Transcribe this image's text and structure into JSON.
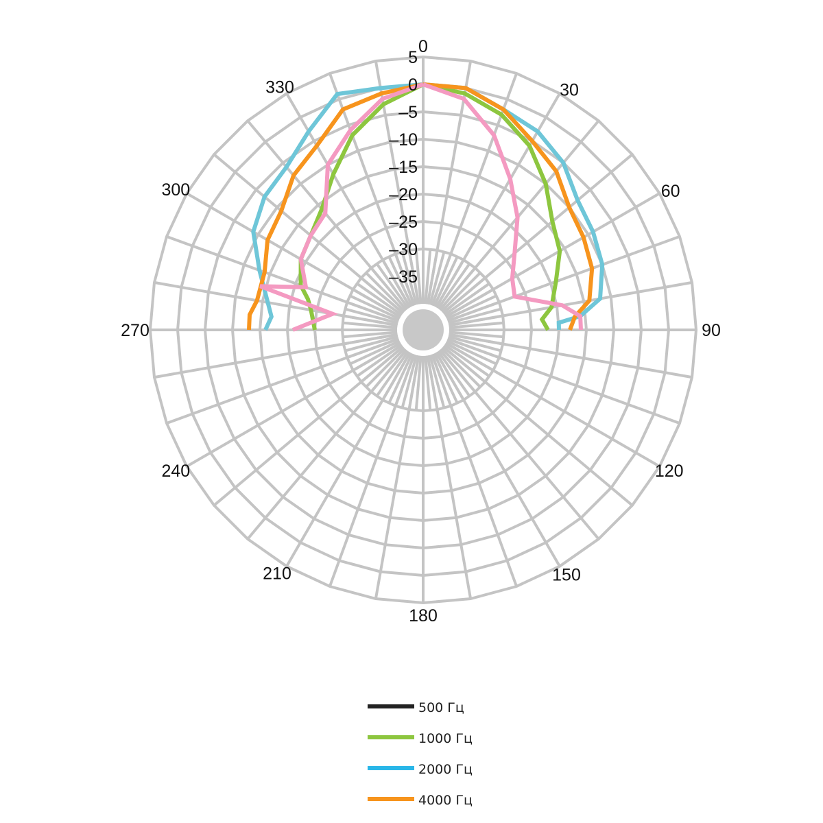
{
  "chart_data": {
    "type": "polar-line",
    "title": "",
    "angle_unit": "deg",
    "angle_direction": "clockwise",
    "angle_zero": "top",
    "angle_labels": [
      "0",
      "30",
      "60",
      "90",
      "120",
      "150",
      "180",
      "210",
      "240",
      "270",
      "300",
      "330"
    ],
    "radial_ticks": [
      5,
      0,
      -5,
      -10,
      -15,
      -20,
      -25,
      -30,
      -35
    ],
    "radial_tick_labels": [
      "5",
      "0",
      "-5",
      "-10",
      "-15",
      "-20",
      "-25",
      "-30",
      "-35"
    ],
    "rlim": [
      -40,
      5
    ],
    "radial_tick_angle": 0,
    "angular_gridline_step": 10,
    "grid": true,
    "legend_position": "bottom",
    "series": [
      {
        "name": "500 Гц",
        "color": "#222222",
        "points": []
      },
      {
        "name": "1000 Гц",
        "color": "#8dc63f",
        "points": [
          [
            0,
            0
          ],
          [
            10,
            -1
          ],
          [
            20,
            -3
          ],
          [
            30,
            -6
          ],
          [
            40,
            -10
          ],
          [
            50,
            -14
          ],
          [
            60,
            -16
          ],
          [
            70,
            -19
          ],
          [
            80,
            -21
          ],
          [
            85,
            -23
          ],
          [
            90,
            -22
          ],
          [
            270,
            -25
          ],
          [
            280,
            -24
          ],
          [
            285,
            -23
          ],
          [
            290,
            -21
          ],
          [
            300,
            -19
          ],
          [
            310,
            -18
          ],
          [
            320,
            -16
          ],
          [
            330,
            -12
          ],
          [
            340,
            -7
          ],
          [
            350,
            -3
          ],
          [
            360,
            0
          ]
        ]
      },
      {
        "name": "2000 Гц",
        "color": "#6ec6d8",
        "points": [
          [
            0,
            0
          ],
          [
            10,
            0
          ],
          [
            20,
            -2
          ],
          [
            30,
            -3
          ],
          [
            40,
            -5
          ],
          [
            50,
            -8
          ],
          [
            60,
            -9
          ],
          [
            70,
            -10
          ],
          [
            80,
            -12
          ],
          [
            85,
            -16
          ],
          [
            87,
            -20
          ],
          [
            90,
            -20
          ],
          [
            270,
            -16
          ],
          [
            275,
            -17
          ],
          [
            280,
            -16
          ],
          [
            290,
            -13
          ],
          [
            300,
            -9
          ],
          [
            310,
            -7
          ],
          [
            320,
            -6
          ],
          [
            330,
            -3
          ],
          [
            340,
            1
          ],
          [
            350,
            0
          ],
          [
            360,
            0
          ]
        ]
      },
      {
        "name": "4000 Гц",
        "color": "#f7941d",
        "points": [
          [
            0,
            0
          ],
          [
            10,
            0
          ],
          [
            20,
            -2
          ],
          [
            30,
            -5
          ],
          [
            40,
            -7
          ],
          [
            50,
            -10
          ],
          [
            60,
            -11
          ],
          [
            70,
            -12
          ],
          [
            80,
            -14
          ],
          [
            85,
            -17
          ],
          [
            90,
            -18
          ],
          [
            270,
            -13
          ],
          [
            275,
            -13
          ],
          [
            280,
            -14
          ],
          [
            290,
            -14
          ],
          [
            300,
            -12
          ],
          [
            310,
            -11
          ],
          [
            320,
            -8
          ],
          [
            330,
            -6
          ],
          [
            340,
            -2
          ],
          [
            350,
            -1
          ],
          [
            360,
            0
          ]
        ]
      },
      {
        "name": "",
        "color": "#f49ac1",
        "points": [
          [
            0,
            0
          ],
          [
            10,
            -2
          ],
          [
            20,
            -7
          ],
          [
            30,
            -13
          ],
          [
            40,
            -18
          ],
          [
            50,
            -23
          ],
          [
            60,
            -26
          ],
          [
            70,
            -27
          ],
          [
            80,
            -19
          ],
          [
            85,
            -16
          ],
          [
            90,
            -16
          ],
          [
            270,
            -21
          ],
          [
            280,
            -28
          ],
          [
            285,
            -14
          ],
          [
            290,
            -22
          ],
          [
            300,
            -19
          ],
          [
            310,
            -18
          ],
          [
            320,
            -17
          ],
          [
            330,
            -10
          ],
          [
            340,
            -6
          ],
          [
            350,
            -2
          ],
          [
            360,
            0
          ]
        ]
      }
    ],
    "legend": [
      {
        "label": "500 Гц",
        "color": "#222222"
      },
      {
        "label": "1000 Гц",
        "color": "#8dc63f"
      },
      {
        "label": "2000 Гц",
        "color": "#29b6e8"
      },
      {
        "label": "4000 Гц",
        "color": "#f7941d"
      }
    ],
    "grid_color": "#c4c4c4"
  }
}
